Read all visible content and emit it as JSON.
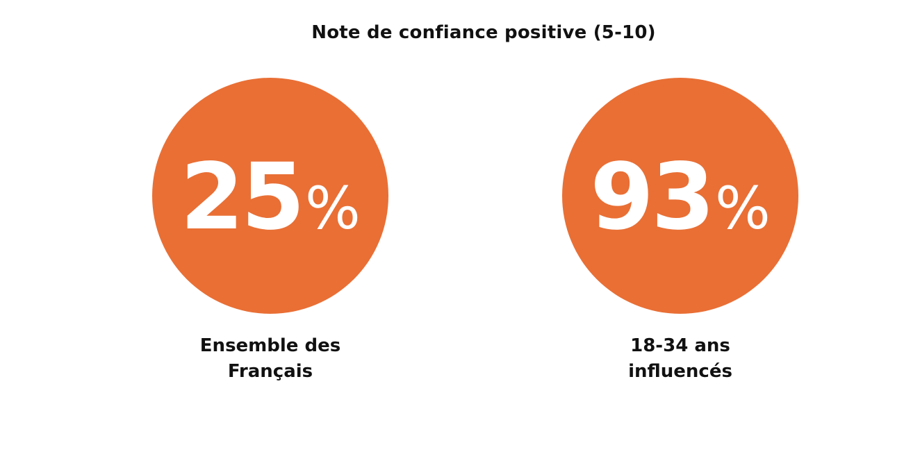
{
  "colors": {
    "circle": "#E96F35",
    "value_text": "#FFFFFF",
    "label_text": "#111111"
  },
  "chart_data": {
    "type": "bar",
    "title": "Note de confiance positive (5-10)",
    "unit": "%",
    "categories": [
      "Ensemble des Français",
      "18-34 ans influencés"
    ],
    "values": [
      25,
      93
    ],
    "items": [
      {
        "value": "25",
        "unit": "%",
        "label_line1": "Ensemble des",
        "label_line2": "Français"
      },
      {
        "value": "93",
        "unit": "%",
        "label_line1": "18-34 ans",
        "label_line2": "influencés"
      }
    ]
  }
}
